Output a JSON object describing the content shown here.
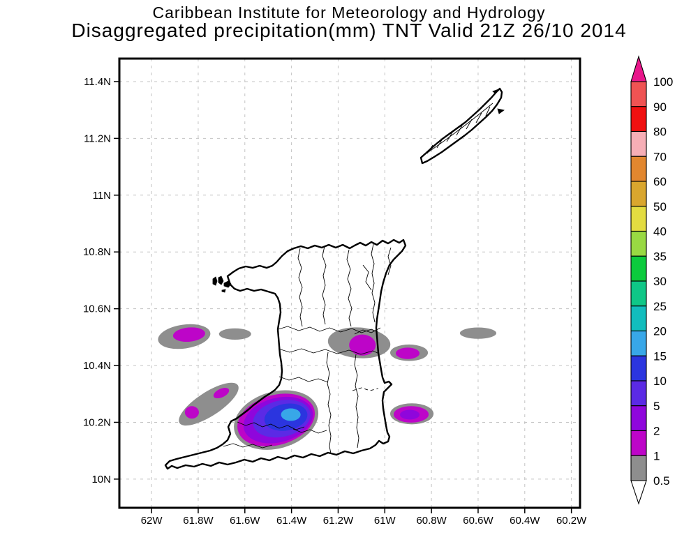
{
  "header": {
    "line1": "Caribbean Institute for Meteorology and Hydrology",
    "line2": "Disaggregated precipitation(mm) TNT Valid 21Z 26/10 2014"
  },
  "chart_data": {
    "type": "heatmap",
    "subtype": "filled-contour-precipitation-map",
    "title": "Caribbean Institute for Meteorology and Hydrology",
    "subtitle": "Disaggregated precipitation(mm) TNT Valid 21Z 26/10 2014",
    "units": "mm",
    "valid_time": "21Z 26/10 2014",
    "domain_label": "TNT",
    "islands_depicted": [
      "Trinidad",
      "Tobago"
    ],
    "grid": true,
    "lon_range": [
      -62.138,
      -60.163
    ],
    "lat_range": [
      9.899,
      11.481
    ],
    "x_axis": {
      "ticks": [
        {
          "label": "62W",
          "lon": -62.0
        },
        {
          "label": "61.8W",
          "lon": -61.8
        },
        {
          "label": "61.6W",
          "lon": -61.6
        },
        {
          "label": "61.4W",
          "lon": -61.4
        },
        {
          "label": "61.2W",
          "lon": -61.2
        },
        {
          "label": "61W",
          "lon": -61.0
        },
        {
          "label": "60.8W",
          "lon": -60.8
        },
        {
          "label": "60.6W",
          "lon": -60.6
        },
        {
          "label": "60.4W",
          "lon": -60.4
        },
        {
          "label": "60.2W",
          "lon": -60.2
        }
      ]
    },
    "y_axis": {
      "ticks": [
        {
          "label": "11.4N",
          "lat": 11.4
        },
        {
          "label": "11.2N",
          "lat": 11.2
        },
        {
          "label": "11N",
          "lat": 11.0
        },
        {
          "label": "10.8N",
          "lat": 10.8
        },
        {
          "label": "10.6N",
          "lat": 10.6
        },
        {
          "label": "10.4N",
          "lat": 10.4
        },
        {
          "label": "10.2N",
          "lat": 10.2
        },
        {
          "label": "10N",
          "lat": 10.0
        }
      ]
    },
    "colorbar": {
      "orientation": "vertical",
      "tick_labels": [
        "100",
        "90",
        "80",
        "70",
        "60",
        "50",
        "40",
        "35",
        "30",
        "25",
        "20",
        "15",
        "10",
        "5",
        "2",
        "1",
        "0.5"
      ],
      "cell_colors_top_to_bottom": [
        "#ef5353",
        "#f01010",
        "#f6aeb6",
        "#e2872f",
        "#d9a62e",
        "#e3dc41",
        "#99d943",
        "#0ccb3d",
        "#0fc787",
        "#12bdbd",
        "#38a7e8",
        "#2b35df",
        "#5b2ae5",
        "#8f06dc",
        "#bd05c8",
        "#8e8e8e"
      ],
      "over_color": "#e9168b",
      "under_color": "#ffffff"
    },
    "level_colors": {
      "0.5": "#8e8e8e",
      "1": "#bd05c8",
      "2": "#8f06dc",
      "5": "#5b2ae5",
      "10": "#2b35df",
      "15": "#38a7e8"
    },
    "precip_features": [
      {
        "name": "west-gulf-cell",
        "contours": [
          {
            "level": 0.5,
            "lon": -61.86,
            "lat": 10.502,
            "rx": 0.113,
            "ry": 0.042,
            "rot": -8
          },
          {
            "level": 1,
            "lon": -61.839,
            "lat": 10.509,
            "rx": 0.069,
            "ry": 0.025,
            "rot": -5
          }
        ]
      },
      {
        "name": "west-gulf-sliver",
        "contours": [
          {
            "level": 0.5,
            "lon": -61.642,
            "lat": 10.511,
            "rx": 0.069,
            "ry": 0.02,
            "rot": 0
          }
        ]
      },
      {
        "name": "northeast-land-cell",
        "contours": [
          {
            "level": 0.5,
            "lon": -61.11,
            "lat": 10.48,
            "rx": 0.134,
            "ry": 0.054,
            "rot": 4
          },
          {
            "level": 1,
            "lon": -61.096,
            "lat": 10.472,
            "rx": 0.057,
            "ry": 0.037,
            "rot": 0
          }
        ]
      },
      {
        "name": "east-offshore-upper-cell",
        "contours": [
          {
            "level": 0.5,
            "lon": -60.896,
            "lat": 10.445,
            "rx": 0.081,
            "ry": 0.029,
            "rot": 0
          },
          {
            "level": 1,
            "lon": -60.902,
            "lat": 10.443,
            "rx": 0.051,
            "ry": 0.02,
            "rot": 0
          }
        ]
      },
      {
        "name": "far-east-sliver",
        "contours": [
          {
            "level": 0.5,
            "lon": -60.6,
            "lat": 10.514,
            "rx": 0.078,
            "ry": 0.02,
            "rot": 0
          }
        ]
      },
      {
        "name": "southwest-coastal-band",
        "contours": [
          {
            "level": 0.5,
            "lon": -61.755,
            "lat": 10.264,
            "rx": 0.149,
            "ry": 0.042,
            "rot": -33
          },
          {
            "level": 1,
            "lon": -61.701,
            "lat": 10.303,
            "rx": 0.036,
            "ry": 0.015,
            "rot": -25
          },
          {
            "level": 1,
            "lon": -61.827,
            "lat": 10.235,
            "rx": 0.03,
            "ry": 0.022,
            "rot": 0
          }
        ]
      },
      {
        "name": "south-central-max-cell",
        "contours": [
          {
            "level": 0.5,
            "lon": -61.466,
            "lat": 10.208,
            "rx": 0.185,
            "ry": 0.1,
            "rot": -16
          },
          {
            "level": 1,
            "lon": -61.466,
            "lat": 10.208,
            "rx": 0.17,
            "ry": 0.088,
            "rot": -16
          },
          {
            "level": 2,
            "lon": -61.457,
            "lat": 10.208,
            "rx": 0.152,
            "ry": 0.078,
            "rot": -15
          },
          {
            "level": 5,
            "lon": -61.442,
            "lat": 10.213,
            "rx": 0.125,
            "ry": 0.064,
            "rot": -13
          },
          {
            "level": 10,
            "lon": -61.424,
            "lat": 10.218,
            "rx": 0.093,
            "ry": 0.047,
            "rot": -10
          },
          {
            "level": 15,
            "lon": -61.403,
            "lat": 10.227,
            "rx": 0.042,
            "ry": 0.022,
            "rot": 0
          }
        ]
      },
      {
        "name": "east-offshore-lower-cell",
        "contours": [
          {
            "level": 0.5,
            "lon": -60.884,
            "lat": 10.23,
            "rx": 0.093,
            "ry": 0.037,
            "rot": 0
          },
          {
            "level": 1,
            "lon": -60.887,
            "lat": 10.228,
            "rx": 0.075,
            "ry": 0.029,
            "rot": 0
          },
          {
            "level": 2,
            "lon": -60.893,
            "lat": 10.227,
            "rx": 0.042,
            "ry": 0.017,
            "rot": 0
          }
        ]
      }
    ]
  }
}
